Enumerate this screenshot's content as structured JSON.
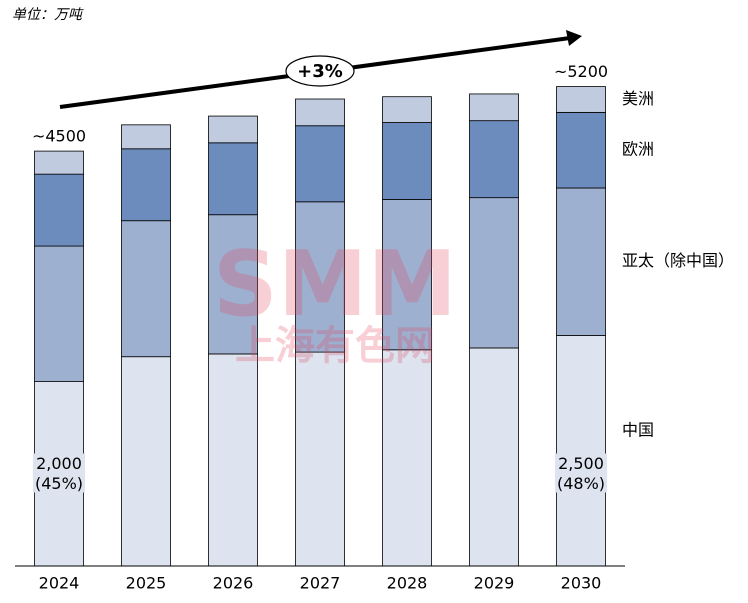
{
  "chart_data": {
    "type": "stacked_bar",
    "title": "单位：万吨",
    "categories": [
      "2024",
      "2025",
      "2026",
      "2027",
      "2028",
      "2029",
      "2030"
    ],
    "series": [
      {
        "name": "中国",
        "color": "#dde3ef",
        "values": [
          2000,
          2270,
          2300,
          2320,
          2345,
          2365,
          2500
        ],
        "value_labels": [
          "2,000\n(45%)",
          null,
          null,
          null,
          null,
          null,
          "2,500\n(48%)"
        ]
      },
      {
        "name": "亚太（除中国）",
        "color": "#9eb0d0",
        "values": [
          1470,
          1475,
          1510,
          1630,
          1630,
          1630,
          1600
        ]
      },
      {
        "name": "欧洲",
        "color": "#6b8cbd",
        "values": [
          780,
          780,
          780,
          825,
          835,
          835,
          820
        ]
      },
      {
        "name": "美洲",
        "color": "#c0cbe0",
        "values": [
          250,
          260,
          290,
          290,
          280,
          290,
          280
        ]
      }
    ],
    "total_labels": [
      {
        "value": 4500,
        "label": "~4500"
      },
      null,
      null,
      null,
      null,
      null,
      {
        "value": 5200,
        "label": "~5200"
      }
    ],
    "growth_annotation": "+3%",
    "watermark": {
      "text": "SMM",
      "subtext": "上海有色网"
    }
  }
}
